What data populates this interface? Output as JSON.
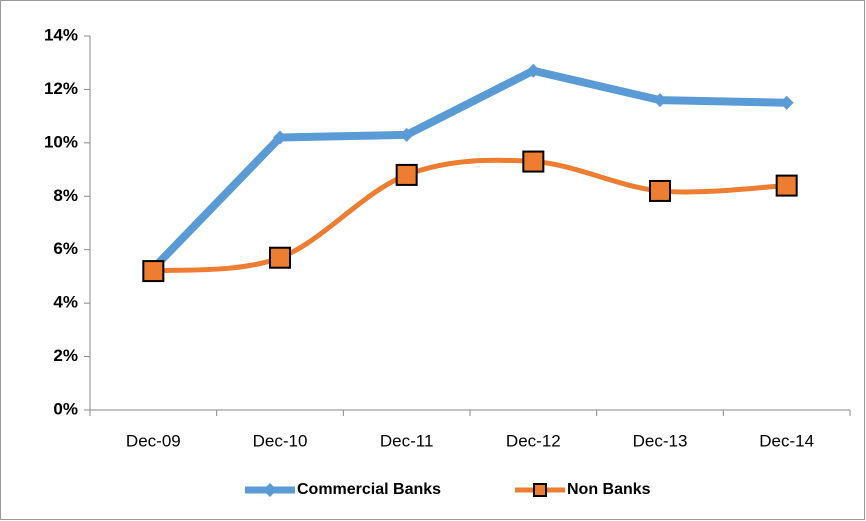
{
  "chart_data": {
    "type": "line",
    "categories": [
      "Dec-09",
      "Dec-10",
      "Dec-11",
      "Dec-12",
      "Dec-13",
      "Dec-14"
    ],
    "series": [
      {
        "name": "Commercial Banks",
        "color": "#5b9bd5",
        "values": [
          5.3,
          10.2,
          10.3,
          12.7,
          11.6,
          11.5
        ]
      },
      {
        "name": "Non Banks",
        "color": "#ed7d31",
        "values": [
          5.2,
          5.7,
          8.8,
          9.3,
          8.2,
          8.4
        ]
      }
    ],
    "ylim": [
      0,
      14
    ],
    "yticks": [
      {
        "value": 0,
        "label": "0%"
      },
      {
        "value": 2,
        "label": "2%"
      },
      {
        "value": 4,
        "label": "4%"
      },
      {
        "value": 6,
        "label": "6%"
      },
      {
        "value": 8,
        "label": "8%"
      },
      {
        "value": 10,
        "label": "10%"
      },
      {
        "value": 12,
        "label": "12%"
      },
      {
        "value": 14,
        "label": "14%"
      }
    ],
    "grid": false,
    "legend": "bottom"
  }
}
